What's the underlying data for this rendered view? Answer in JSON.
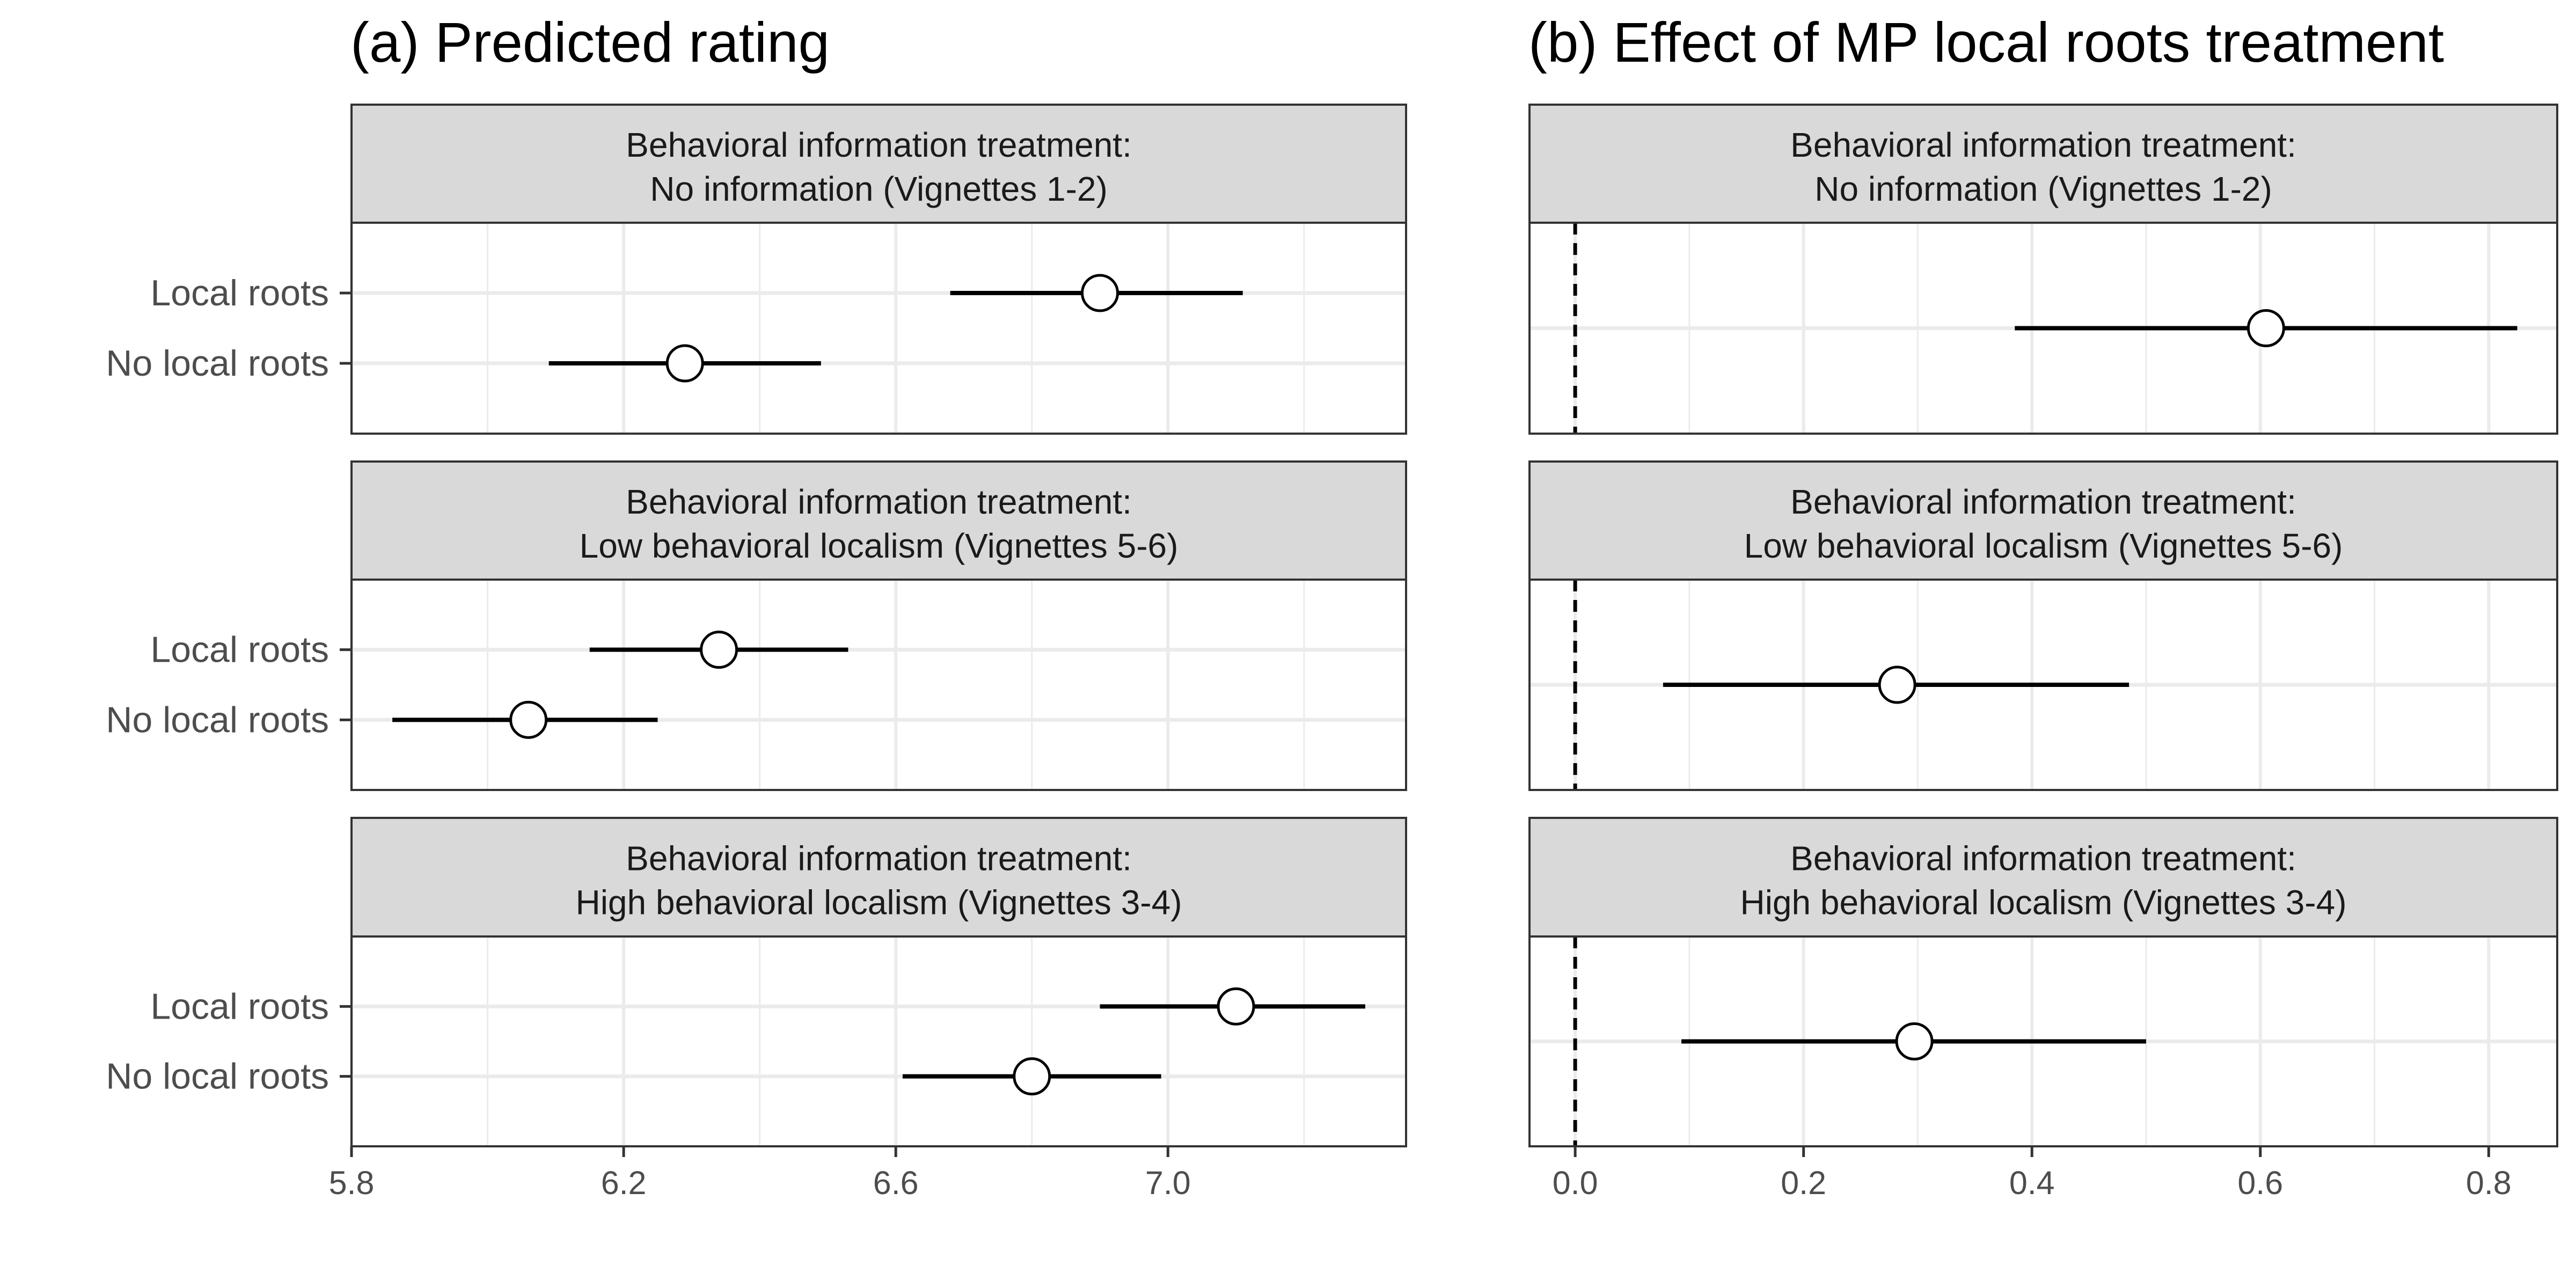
{
  "chart_data": [
    {
      "type": "dot-whisker",
      "title": "(a) Predicted rating",
      "xlabel": "",
      "ylabel": "",
      "xlim": [
        5.8,
        7.35
      ],
      "x_ticks": [
        5.8,
        6.2,
        6.6,
        7.0
      ],
      "x_tick_labels": [
        "5.8",
        "6.2",
        "6.6",
        "7.0"
      ],
      "minor_ticks": [
        6.0,
        6.4,
        6.8,
        7.2
      ],
      "categories": [
        "Local roots",
        "No local roots"
      ],
      "grid": true,
      "reference_line": null,
      "facets": [
        {
          "strip": [
            "Behavioral information treatment:",
            "No information (Vignettes 1-2)"
          ],
          "points": [
            {
              "label": "Local roots",
              "estimate": 6.9,
              "low": 6.68,
              "high": 7.11
            },
            {
              "label": "No local roots",
              "estimate": 6.29,
              "low": 6.09,
              "high": 6.49
            }
          ]
        },
        {
          "strip": [
            "Behavioral information treatment:",
            "Low behavioral localism (Vignettes 5-6)"
          ],
          "points": [
            {
              "label": "Local roots",
              "estimate": 6.34,
              "low": 6.15,
              "high": 6.53
            },
            {
              "label": "No local roots",
              "estimate": 6.06,
              "low": 5.86,
              "high": 6.25
            }
          ]
        },
        {
          "strip": [
            "Behavioral information treatment:",
            "High behavioral localism (Vignettes 3-4)"
          ],
          "points": [
            {
              "label": "Local roots",
              "estimate": 7.1,
              "low": 6.9,
              "high": 7.29
            },
            {
              "label": "No local roots",
              "estimate": 6.8,
              "low": 6.61,
              "high": 6.99
            }
          ]
        }
      ]
    },
    {
      "type": "dot-whisker",
      "title": "(b) Effect of MP local roots treatment",
      "xlabel": "",
      "ylabel": "",
      "xlim": [
        -0.04,
        0.86
      ],
      "x_ticks": [
        0.0,
        0.2,
        0.4,
        0.6,
        0.8
      ],
      "x_tick_labels": [
        "0.0",
        "0.2",
        "0.4",
        "0.6",
        "0.8"
      ],
      "minor_ticks": [
        0.1,
        0.3,
        0.5,
        0.7
      ],
      "categories": [
        ""
      ],
      "grid": true,
      "reference_line": {
        "x": 0.0,
        "style": "dashed"
      },
      "facets": [
        {
          "strip": [
            "Behavioral information treatment:",
            "No information (Vignettes 1-2)"
          ],
          "points": [
            {
              "label": "",
              "estimate": 0.605,
              "low": 0.385,
              "high": 0.825
            }
          ]
        },
        {
          "strip": [
            "Behavioral information treatment:",
            "Low behavioral localism (Vignettes 5-6)"
          ],
          "points": [
            {
              "label": "",
              "estimate": 0.282,
              "low": 0.077,
              "high": 0.485
            }
          ]
        },
        {
          "strip": [
            "Behavioral information treatment:",
            "High behavioral localism (Vignettes 3-4)"
          ],
          "points": [
            {
              "label": "",
              "estimate": 0.297,
              "low": 0.093,
              "high": 0.5
            }
          ]
        }
      ]
    }
  ]
}
